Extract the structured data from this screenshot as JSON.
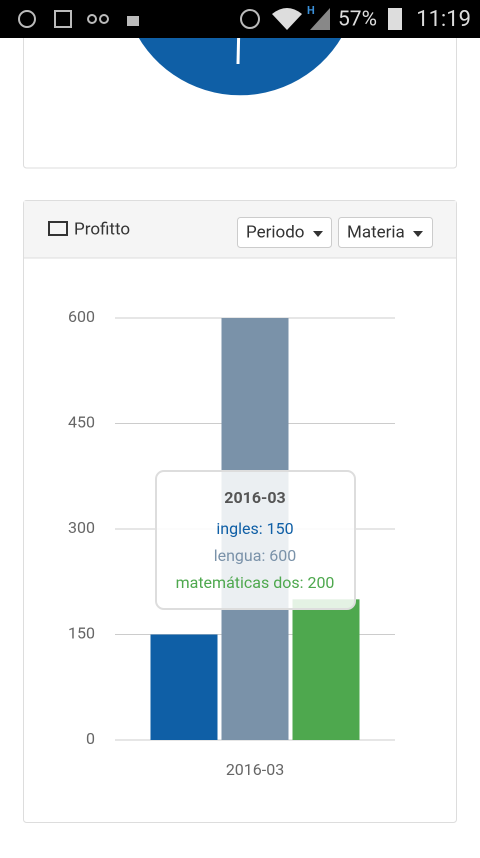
{
  "status_bar": {
    "network": "H",
    "battery": "57%",
    "time": "11:19"
  },
  "panel": {
    "title": "Profitto",
    "buttons": [
      "Periodo",
      "Materia"
    ]
  },
  "chart_data": {
    "type": "bar",
    "categories": [
      "2016-03"
    ],
    "series": [
      {
        "name": "ingles",
        "color": "#0f5fa6",
        "values": [
          150
        ]
      },
      {
        "name": "lengua",
        "color": "#7a92a9",
        "values": [
          600
        ]
      },
      {
        "name": "matemáticas dos",
        "color": "#4ea84e",
        "values": [
          200
        ]
      }
    ],
    "ylim": [
      0,
      600
    ],
    "yticks": [
      0,
      150,
      300,
      450,
      600
    ],
    "grid": true,
    "tooltip": {
      "title": "2016-03",
      "lines": [
        "ingles: 150",
        "lengua: 600",
        "matemáticas dos: 200"
      ]
    }
  }
}
